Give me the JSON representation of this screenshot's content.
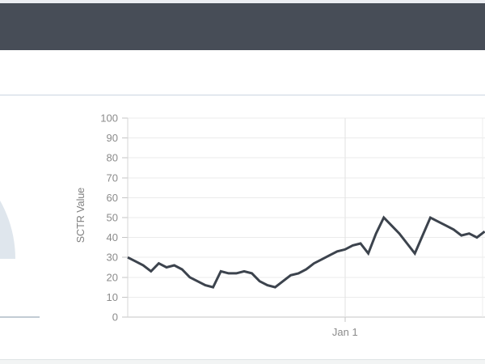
{
  "page": {
    "top_strip_color": "#ebedf1",
    "header_color": "#474d57",
    "divider_color": "#cbd5e0",
    "background": "#ffffff",
    "bottom_border_color": "#e0e5e6",
    "bottom_strip_color": "#f2f4f4"
  },
  "left_widget": {
    "gauge_fill_color": "#dfe6ed",
    "baseline_color": "#c2ccd4"
  },
  "chart_data": {
    "type": "line",
    "title": "",
    "xlabel": "",
    "ylabel": "SCTR Value",
    "ylim": [
      0,
      100
    ],
    "yticks": [
      0,
      10,
      20,
      30,
      40,
      50,
      60,
      70,
      80,
      90,
      100
    ],
    "grid": true,
    "legend": "none",
    "x_unit": "daily index (series continues past right edge of viewport)",
    "xticks": [
      {
        "index": 28,
        "label": "Jan 1"
      }
    ],
    "right_edge_gridline_index": 45.75,
    "series": [
      {
        "name": "SCTR",
        "color": "#3c434d",
        "values": [
          30,
          28,
          26,
          23,
          27,
          25,
          26,
          24,
          20,
          18,
          16,
          15,
          23,
          22,
          22,
          23,
          22,
          18,
          16,
          15,
          18,
          21,
          22,
          24,
          27,
          29,
          31,
          33,
          34,
          36,
          37,
          32,
          42,
          50,
          46,
          42,
          37,
          32,
          41,
          50,
          48,
          46,
          44,
          41,
          42,
          40,
          43
        ]
      }
    ],
    "axis_colors": {
      "tick_label": "#8b8b8b",
      "axis_line": "#c6c6c6",
      "gridline": "#ebebeb"
    }
  }
}
